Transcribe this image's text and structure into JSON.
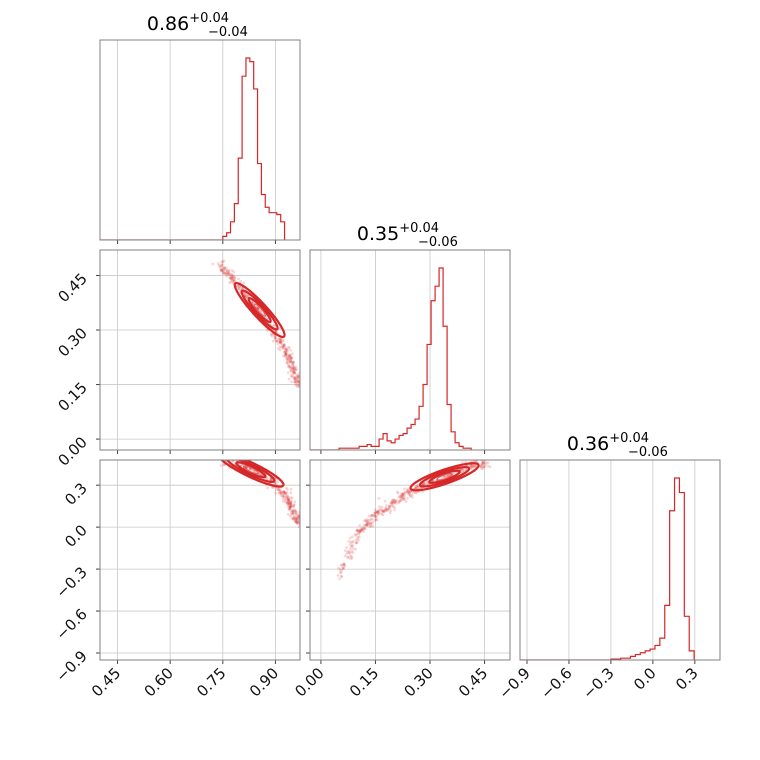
{
  "chart_data": {
    "type": "corner",
    "color": "#d62728",
    "grid": true,
    "parameters": [
      {
        "index": 0,
        "title": {
          "median": "0.86",
          "plus": "+0.04",
          "minus": "−0.04"
        },
        "range": [
          0.4,
          0.97
        ],
        "ticks": [
          0.45,
          0.6,
          0.75,
          0.9
        ],
        "tick_labels": [
          "0.45",
          "0.60",
          "0.75",
          "0.90"
        ],
        "hist_edges_start": 0.75,
        "hist_bin_width": 0.011,
        "hist_counts": [
          0.02,
          0.04,
          0.1,
          0.2,
          0.45,
          0.9,
          1.0,
          0.98,
          0.83,
          0.42,
          0.25,
          0.18,
          0.15,
          0.15,
          0.14,
          0.1
        ]
      },
      {
        "index": 1,
        "title": {
          "median": "0.35",
          "plus": "+0.04",
          "minus": "−0.06"
        },
        "range": [
          -0.03,
          0.52
        ],
        "ticks": [
          0.0,
          0.15,
          0.3,
          0.45
        ],
        "tick_labels": [
          "0.00",
          "0.15",
          "0.30",
          "0.45"
        ],
        "hist_edges_start": 0.05,
        "hist_bin_width": 0.011,
        "hist_counts": [
          0.01,
          0.01,
          0.01,
          0.01,
          0.01,
          0.02,
          0.02,
          0.03,
          0.02,
          0.02,
          0.06,
          0.09,
          0.05,
          0.04,
          0.06,
          0.08,
          0.09,
          0.12,
          0.14,
          0.17,
          0.24,
          0.36,
          0.58,
          0.82,
          0.9,
          1.0,
          0.68,
          0.25,
          0.1,
          0.04,
          0.02,
          0.01,
          0.01
        ]
      },
      {
        "index": 2,
        "title": {
          "median": "0.36",
          "plus": "+0.04",
          "minus": "−0.06"
        },
        "range": [
          -0.95,
          0.48
        ],
        "ticks": [
          -0.9,
          -0.6,
          -0.3,
          0.0,
          0.3
        ],
        "tick_labels": [
          "−0.9",
          "−0.6",
          "−0.3",
          "0.0",
          "0.3"
        ],
        "hist_edges_start": -0.3,
        "hist_bin_width": 0.035,
        "hist_counts": [
          0.005,
          0.005,
          0.01,
          0.01,
          0.02,
          0.03,
          0.04,
          0.05,
          0.06,
          0.08,
          0.12,
          0.3,
          0.82,
          1.0,
          0.92,
          0.24,
          0.05
        ]
      }
    ],
    "pairs": [
      {
        "x_param": 0,
        "y_param": 1,
        "ridge": [
          [
            0.74,
            0.48
          ],
          [
            0.78,
            0.44
          ],
          [
            0.82,
            0.39
          ],
          [
            0.86,
            0.34
          ],
          [
            0.9,
            0.29
          ],
          [
            0.93,
            0.24
          ],
          [
            0.95,
            0.19
          ],
          [
            0.97,
            0.14
          ]
        ],
        "contour_center": [
          0.855,
          0.355
        ],
        "contour_slope": -1.05
      },
      {
        "x_param": 0,
        "y_param": 2,
        "ridge": [
          [
            0.75,
            0.47
          ],
          [
            0.8,
            0.44
          ],
          [
            0.85,
            0.4
          ],
          [
            0.89,
            0.33
          ],
          [
            0.93,
            0.22
          ],
          [
            0.95,
            0.12
          ],
          [
            0.97,
            0.02
          ]
        ],
        "contour_center": [
          0.83,
          0.41
        ],
        "contour_slope": -1.2
      },
      {
        "x_param": 1,
        "y_param": 2,
        "ridge": [
          [
            0.05,
            -0.35
          ],
          [
            0.1,
            -0.05
          ],
          [
            0.15,
            0.08
          ],
          [
            0.2,
            0.18
          ],
          [
            0.25,
            0.26
          ],
          [
            0.3,
            0.33
          ],
          [
            0.35,
            0.39
          ],
          [
            0.4,
            0.43
          ],
          [
            0.46,
            0.46
          ]
        ],
        "contour_center": [
          0.34,
          0.36
        ],
        "contour_slope": 0.9
      }
    ]
  }
}
